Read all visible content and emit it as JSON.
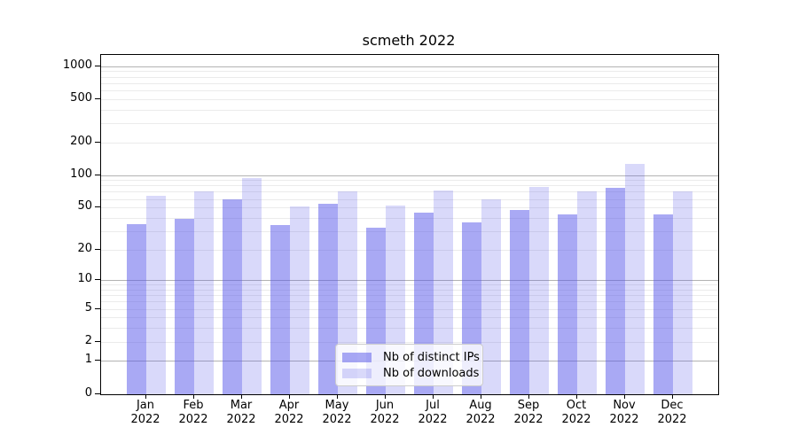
{
  "chart_data": {
    "type": "bar",
    "title": "scmeth 2022",
    "categories": [
      "Jan",
      "Feb",
      "Mar",
      "Apr",
      "May",
      "Jun",
      "Jul",
      "Aug",
      "Sep",
      "Oct",
      "Nov",
      "Dec"
    ],
    "category_year": "2022",
    "series": [
      {
        "name": "Nb of distinct IPs",
        "color": "rgba(83,83,233,0.5)",
        "values": [
          35,
          39,
          60,
          34,
          54,
          32,
          45,
          36,
          47,
          43,
          76,
          43
        ]
      },
      {
        "name": "Nb of downloads",
        "color": "rgba(83,83,233,0.22)",
        "values": [
          64,
          71,
          93,
          51,
          70,
          52,
          72,
          59,
          78,
          71,
          127,
          70
        ]
      }
    ],
    "y_ticks": [
      0,
      1,
      2,
      5,
      10,
      20,
      50,
      100,
      200,
      500,
      1000
    ],
    "scale": "log1p",
    "ylim": [
      0,
      1100
    ],
    "grid": "on",
    "legend_position": "lower center",
    "colors": {
      "major_grid": "#b3b3b3",
      "minor_grid": "#ebebeb",
      "spine": "#000000",
      "legend_border": "#cccccc",
      "legend_bg": "rgba(255,255,255,0.8)",
      "text": "#000000"
    }
  }
}
